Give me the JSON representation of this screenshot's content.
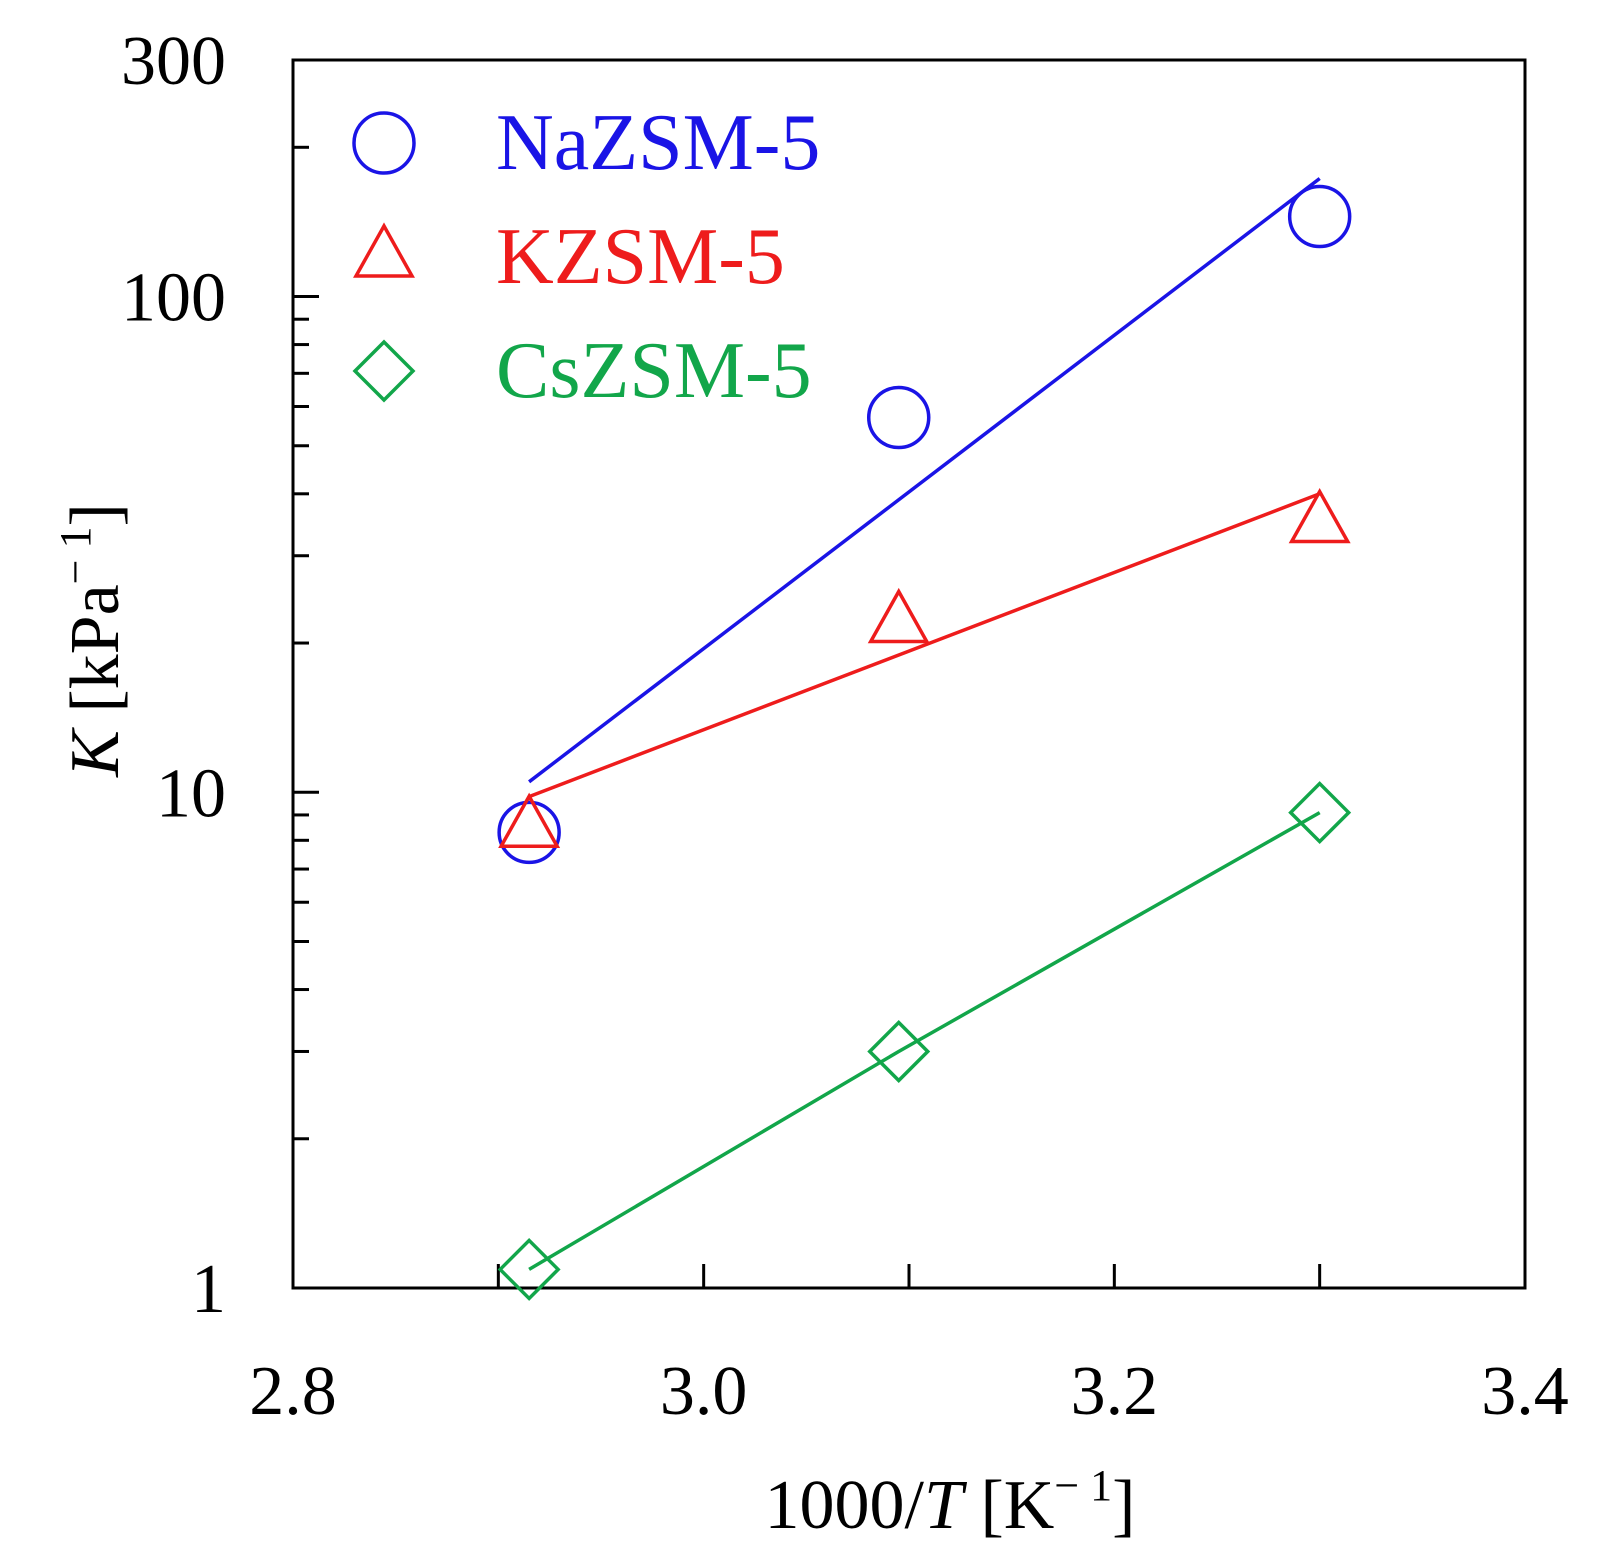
{
  "chart_data": {
    "type": "scatter",
    "title": "",
    "xlabel": "1000/T [K⁻¹]",
    "xlabel_parts": {
      "prefix": "1000/",
      "var": "T",
      "unit_open": " [K",
      "unit_sup": "− 1",
      "unit_close": "]"
    },
    "ylabel_parts": {
      "var": "K",
      "unit_open": " [kPa",
      "unit_sup": "− 1",
      "unit_close": "]"
    },
    "xlim": [
      2.8,
      3.4
    ],
    "ylim": [
      1,
      300
    ],
    "yscale": "log",
    "x_ticks": [
      2.8,
      3.0,
      3.2,
      3.4
    ],
    "x_tick_labels": [
      "2.8",
      "3.0",
      "3.2",
      "3.4"
    ],
    "y_tick_labels": [
      {
        "value": 1,
        "label": "1"
      },
      {
        "value": 10,
        "label": "10"
      },
      {
        "value": 100,
        "label": "100"
      },
      {
        "value": 300,
        "label": "300"
      }
    ],
    "legend_position": "top-left",
    "series": [
      {
        "name": "NaZSM-5",
        "marker": "circle",
        "color": "#1a14e6",
        "points": [
          {
            "x": 2.915,
            "y": 8.3
          },
          {
            "x": 3.095,
            "y": 57
          },
          {
            "x": 3.3,
            "y": 145
          }
        ],
        "fit": [
          {
            "x": 2.915,
            "y": 10.5
          },
          {
            "x": 3.3,
            "y": 173
          }
        ]
      },
      {
        "name": "KZSM-5",
        "marker": "triangle",
        "color": "#ee1c1c",
        "points": [
          {
            "x": 2.915,
            "y": 8.5
          },
          {
            "x": 3.095,
            "y": 22
          },
          {
            "x": 3.3,
            "y": 35
          }
        ],
        "fit": [
          {
            "x": 2.915,
            "y": 9.8
          },
          {
            "x": 3.3,
            "y": 40
          }
        ]
      },
      {
        "name": "CsZSM-5",
        "marker": "diamond",
        "color": "#12a64a",
        "points": [
          {
            "x": 2.915,
            "y": 1.09
          },
          {
            "x": 3.095,
            "y": 3.0
          },
          {
            "x": 3.3,
            "y": 9.1
          }
        ],
        "fit": [
          {
            "x": 2.915,
            "y": 1.09
          },
          {
            "x": 3.095,
            "y": 3.0
          },
          {
            "x": 3.3,
            "y": 9.1
          }
        ]
      }
    ]
  }
}
